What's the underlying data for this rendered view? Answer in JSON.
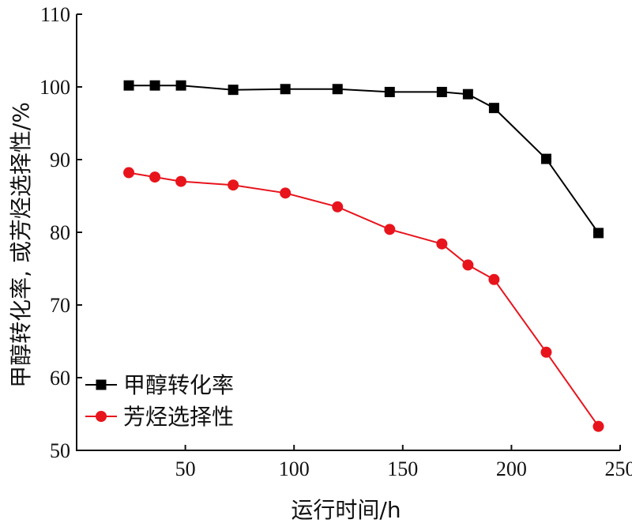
{
  "chart_data": {
    "type": "line",
    "xlabel": "运行时间/h",
    "ylabel": "甲醇转化率, 或芳烃选择性/%",
    "xlim": [
      0,
      250
    ],
    "ylim": [
      50,
      110
    ],
    "xticks": [
      50,
      100,
      150,
      200,
      250
    ],
    "yticks": [
      50,
      60,
      70,
      80,
      90,
      100,
      110
    ],
    "grid": false,
    "legend_position": "bottom-left",
    "series": [
      {
        "name": "甲醇转化率",
        "marker": "square",
        "color": "#000000",
        "x": [
          24,
          36,
          48,
          72,
          96,
          120,
          144,
          168,
          180,
          192,
          216,
          240
        ],
        "y": [
          100.2,
          100.2,
          100.2,
          99.6,
          99.7,
          99.7,
          99.3,
          99.3,
          99.0,
          97.1,
          90.1,
          79.9
        ]
      },
      {
        "name": "芳烃选择性",
        "marker": "circle",
        "color": "#e8141c",
        "x": [
          24,
          36,
          48,
          72,
          96,
          120,
          144,
          168,
          180,
          192,
          216,
          240
        ],
        "y": [
          88.2,
          87.6,
          87.0,
          86.5,
          85.4,
          83.5,
          80.4,
          78.4,
          75.5,
          73.5,
          63.5,
          53.3
        ]
      }
    ]
  }
}
